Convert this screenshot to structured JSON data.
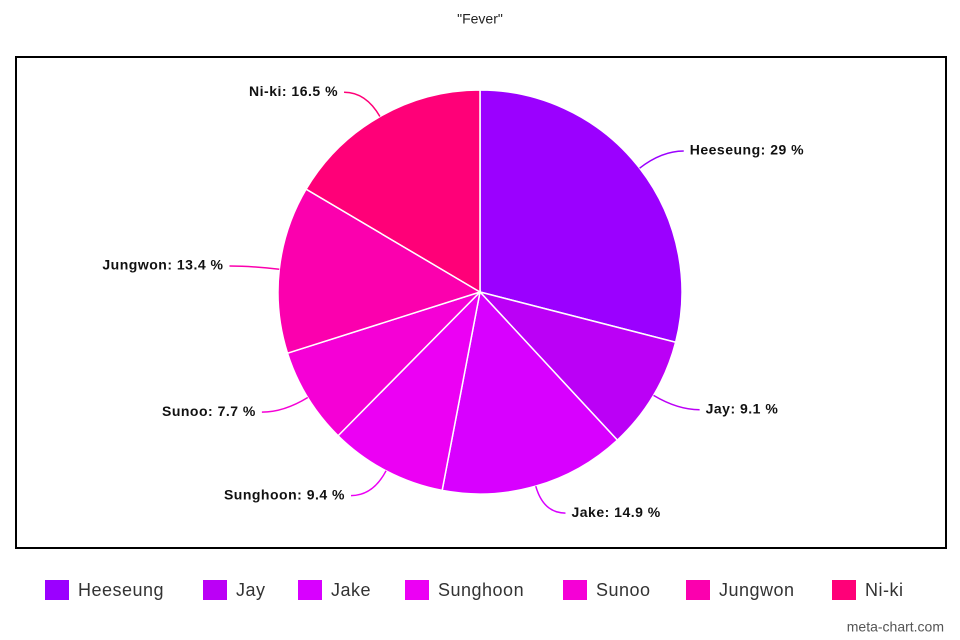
{
  "chart_data": {
    "type": "pie",
    "title": "\"Fever\"",
    "categories": [
      "Heeseung",
      "Jay",
      "Jake",
      "Sunghoon",
      "Sunoo",
      "Jungwon",
      "Ni-ki"
    ],
    "values": [
      29,
      9.1,
      14.9,
      9.4,
      7.7,
      13.4,
      16.5
    ],
    "value_labels": [
      "Heeseung: 29 %",
      "Jay: 9.1 %",
      "Jake: 14.9 %",
      "Sunghoon: 9.4 %",
      "Sunoo: 7.7 %",
      "Jungwon: 13.4 %",
      "Ni-ki: 16.5 %"
    ],
    "colors": [
      "#9b00ff",
      "#bb00f6",
      "#d800ff",
      "#ec00f4",
      "#f500d6",
      "#fb00ae",
      "#ff0078"
    ],
    "legend": "bottom",
    "watermark": "meta-chart.com"
  }
}
